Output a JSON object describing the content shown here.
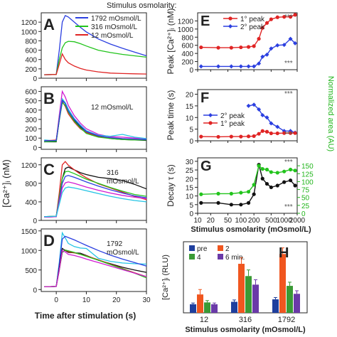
{
  "figure_title": "Stimulus osmolarity:",
  "left_ylabel": "[Ca²⁺]ᵢ (nM)",
  "left_xlabel": "Time after stimulation (s)",
  "colors": {
    "blue": "#2b3fe0",
    "green": "#22c41c",
    "red": "#e02424",
    "black": "#111111",
    "magenta": "#d21bd2",
    "cyan": "#24c4e4",
    "purple": "#6a3aa8",
    "orange": "#f0561f",
    "navy": "#1f3f9e",
    "darkgreen": "#3a9a35",
    "areaaxis": "#22b51c"
  },
  "chart_data": [
    {
      "panel": "A",
      "type": "line",
      "x": [
        -4,
        0,
        1,
        2,
        3,
        4,
        6,
        8,
        10,
        14,
        18,
        22,
        26,
        30
      ],
      "xlim": [
        -5,
        30
      ],
      "ylim": [
        0,
        1400
      ],
      "yticks": [
        0,
        200,
        400,
        600,
        800,
        1000,
        1200
      ],
      "series": [
        {
          "name": "1792 mOsmol/L",
          "color": "blue",
          "y": [
            75,
            80,
            600,
            1200,
            1340,
            1310,
            1200,
            1090,
            990,
            840,
            730,
            640,
            560,
            480
          ]
        },
        {
          "name": "316 mOsmol/L",
          "color": "green",
          "y": [
            75,
            80,
            400,
            650,
            760,
            790,
            780,
            740,
            690,
            600,
            550,
            510,
            480,
            450
          ]
        },
        {
          "name": "12 mOsmol/L",
          "color": "red",
          "y": [
            75,
            80,
            300,
            520,
            400,
            330,
            260,
            210,
            175,
            135,
            110,
            100,
            95,
            90
          ]
        }
      ]
    },
    {
      "panel": "B",
      "type": "line",
      "annotation": "12 mOsmol/L",
      "x": [
        -4,
        0,
        1,
        2,
        3,
        4,
        6,
        8,
        10,
        14,
        18,
        22,
        26,
        30
      ],
      "xlim": [
        -5,
        30
      ],
      "ylim": [
        -20,
        650
      ],
      "yticks": [
        0,
        100,
        200,
        300,
        400,
        500,
        600
      ],
      "series": [
        {
          "color": "magenta",
          "y": [
            60,
            70,
            350,
            600,
            540,
            450,
            340,
            260,
            200,
            140,
            115,
            110,
            100,
            95
          ]
        },
        {
          "color": "black",
          "y": [
            60,
            60,
            300,
            510,
            470,
            390,
            290,
            220,
            170,
            120,
            95,
            85,
            80,
            75
          ]
        },
        {
          "color": "cyan",
          "y": [
            80,
            70,
            320,
            520,
            480,
            410,
            310,
            240,
            180,
            130,
            120,
            140,
            110,
            95
          ]
        },
        {
          "color": "red",
          "y": [
            70,
            80,
            310,
            490,
            440,
            360,
            270,
            200,
            160,
            115,
            100,
            90,
            85,
            80
          ]
        },
        {
          "color": "green",
          "y": [
            60,
            65,
            290,
            480,
            450,
            380,
            280,
            210,
            150,
            110,
            95,
            85,
            80,
            80
          ]
        },
        {
          "color": "blue",
          "y": [
            70,
            75,
            300,
            500,
            470,
            390,
            300,
            230,
            170,
            125,
            105,
            95,
            90,
            85
          ]
        }
      ]
    },
    {
      "panel": "C",
      "type": "line",
      "annotation": "316 mOsmol/L",
      "x": [
        -4,
        0,
        1,
        2,
        3,
        4,
        6,
        8,
        10,
        14,
        18,
        22,
        26,
        30
      ],
      "xlim": [
        -5,
        30
      ],
      "ylim": [
        0,
        1350
      ],
      "yticks": [
        0,
        400,
        800,
        1200
      ],
      "series": [
        {
          "color": "black",
          "y": [
            80,
            90,
            500,
            900,
            1120,
            1150,
            1090,
            1030,
            990,
            930,
            900,
            860,
            780,
            680
          ]
        },
        {
          "color": "red",
          "y": [
            70,
            80,
            600,
            1200,
            1270,
            1190,
            1090,
            1000,
            920,
            790,
            700,
            610,
            520,
            450
          ]
        },
        {
          "color": "green",
          "y": [
            80,
            90,
            500,
            900,
            1050,
            1060,
            1010,
            950,
            890,
            800,
            710,
            630,
            560,
            520
          ]
        },
        {
          "color": "blue",
          "y": [
            70,
            80,
            450,
            800,
            950,
            970,
            930,
            880,
            830,
            740,
            660,
            590,
            530,
            490
          ]
        },
        {
          "color": "magenta",
          "y": [
            70,
            80,
            400,
            700,
            810,
            830,
            800,
            760,
            720,
            650,
            590,
            540,
            500,
            470
          ]
        },
        {
          "color": "cyan",
          "y": [
            80,
            90,
            350,
            600,
            700,
            720,
            700,
            670,
            640,
            580,
            520,
            470,
            430,
            400
          ]
        }
      ]
    },
    {
      "panel": "D",
      "type": "line",
      "annotation": "1792 mOsmol/L",
      "x": [
        -4,
        0,
        1,
        2,
        3,
        4,
        6,
        8,
        10,
        14,
        18,
        22,
        26,
        30
      ],
      "xlim": [
        -5,
        30
      ],
      "ylim": [
        -50,
        1550
      ],
      "yticks": [
        0,
        500,
        1000,
        1500
      ],
      "series": [
        {
          "color": "cyan",
          "y": [
            70,
            80,
            700,
            1450,
            1320,
            1180,
            1100,
            1060,
            1050,
            800,
            720,
            680,
            660,
            650
          ]
        },
        {
          "color": "blue",
          "y": [
            70,
            80,
            650,
            1290,
            1360,
            1330,
            1270,
            1200,
            1130,
            1000,
            880,
            780,
            690,
            600
          ]
        },
        {
          "color": "black",
          "y": [
            70,
            80,
            550,
            1050,
            1000,
            950,
            940,
            930,
            870,
            750,
            660,
            570,
            500,
            440
          ]
        },
        {
          "color": "red",
          "y": [
            70,
            80,
            500,
            950,
            1010,
            970,
            940,
            900,
            860,
            760,
            650,
            540,
            430,
            330
          ]
        },
        {
          "color": "green",
          "y": [
            70,
            80,
            500,
            950,
            1010,
            990,
            950,
            900,
            850,
            750,
            640,
            530,
            420,
            300
          ]
        },
        {
          "color": "magenta",
          "y": [
            70,
            80,
            500,
            1000,
            960,
            900,
            870,
            830,
            780,
            690,
            600,
            510,
            420,
            330
          ]
        }
      ]
    },
    {
      "panel": "E",
      "type": "line",
      "ylabel": "Peak [Ca²⁺]ᵢ (nM)",
      "x": [
        12,
        30,
        60,
        100,
        150,
        200,
        260,
        316,
        400,
        500,
        700,
        1000,
        1400,
        1792
      ],
      "xlim": [
        10,
        2000
      ],
      "xscale": "log",
      "ylim": [
        0,
        1400
      ],
      "yticks": [
        0,
        200,
        400,
        600,
        800,
        1000,
        1200
      ],
      "legend": [
        "1° peak",
        "2° peak"
      ],
      "stars": [
        "***",
        "***"
      ],
      "series": [
        {
          "name": "1° peak",
          "color": "red",
          "y": [
            550,
            540,
            540,
            550,
            560,
            580,
            760,
            1030,
            1150,
            1240,
            1290,
            1300,
            1300,
            1350
          ]
        },
        {
          "name": "2° peak",
          "color": "blue",
          "x": [
            12,
            30,
            60,
            100,
            150,
            200,
            260,
            316,
            400,
            500,
            700,
            1000,
            1400,
            1792
          ],
          "y": [
            80,
            80,
            80,
            80,
            80,
            80,
            150,
            320,
            370,
            520,
            600,
            610,
            760,
            650
          ]
        }
      ]
    },
    {
      "panel": "F",
      "type": "line",
      "ylabel": "Peak time (s)",
      "xlim": [
        10,
        2000
      ],
      "xscale": "log",
      "ylim": [
        0,
        22
      ],
      "yticks": [
        0,
        5,
        10,
        15,
        20
      ],
      "legend": [
        "2° peak",
        "1° peak"
      ],
      "stars": [
        "***",
        "***"
      ],
      "series": [
        {
          "name": "2° peak",
          "color": "blue",
          "x": [
            150,
            200,
            260,
            316,
            400,
            500,
            700,
            1000,
            1400,
            1792
          ],
          "y": [
            15,
            15.5,
            13.5,
            11,
            10,
            7.5,
            6,
            4.2,
            4.2,
            3.5
          ]
        },
        {
          "name": "1° peak",
          "color": "red",
          "x": [
            12,
            30,
            60,
            100,
            150,
            200,
            260,
            316,
            400,
            500,
            700,
            1000,
            1400,
            1792
          ],
          "y": [
            1.8,
            1.7,
            1.8,
            1.8,
            1.9,
            2,
            3,
            4.2,
            3.9,
            3.2,
            3.2,
            3.3,
            3.3,
            3.3
          ]
        }
      ]
    },
    {
      "panel": "G",
      "type": "line",
      "ylabel": "Decay τ (s)",
      "y2label": "Normalized area (AU)",
      "xlabel": "Stimulus osmolarity (mOsmol/L)",
      "xlim": [
        10,
        2000
      ],
      "xscale": "log",
      "xticks": [
        10,
        20,
        50,
        100,
        200,
        500,
        1000,
        2000
      ],
      "ylim": [
        0,
        32
      ],
      "yticks": [
        0,
        5,
        10,
        15,
        20,
        25,
        30
      ],
      "y2lim": [
        0,
        175
      ],
      "y2ticks": [
        0,
        25,
        50,
        75,
        100,
        125,
        150
      ],
      "stars": [
        "***",
        "***"
      ],
      "series": [
        {
          "name": "Decay τ",
          "color": "black",
          "x": [
            12,
            30,
            60,
            100,
            150,
            200,
            260,
            316,
            400,
            500,
            700,
            1000,
            1400,
            1792
          ],
          "y": [
            6,
            6,
            5,
            5,
            6,
            11,
            28,
            20,
            17,
            15,
            16,
            18,
            19,
            16
          ]
        },
        {
          "name": "Normalized area",
          "color": "green",
          "axis": "right",
          "x": [
            12,
            30,
            60,
            100,
            150,
            200,
            260,
            316,
            400,
            500,
            700,
            1000,
            1400,
            1792
          ],
          "y": [
            60,
            62,
            62,
            65,
            68,
            90,
            150,
            140,
            138,
            130,
            128,
            132,
            138,
            135
          ]
        }
      ]
    },
    {
      "panel": "H",
      "type": "bar",
      "ylabel": "[Ca²⁺]ᵢ (RLU)",
      "xlabel": "Stimulus osmolarity (mOsmol/L)",
      "categories": [
        "12",
        "316",
        "1792"
      ],
      "ylim": [
        0,
        580
      ],
      "legend": [
        "pre",
        "2",
        "4",
        "6 min."
      ],
      "series": [
        {
          "name": "pre",
          "color": "navy",
          "values": [
            70,
            90,
            110
          ]
        },
        {
          "name": "2",
          "color": "orange",
          "values": [
            150,
            400,
            480
          ]
        },
        {
          "name": "4",
          "color": "darkgreen",
          "values": [
            85,
            300,
            220
          ]
        },
        {
          "name": "6 min.",
          "color": "purple",
          "values": [
            70,
            230,
            155
          ]
        }
      ],
      "errors": [
        [
          10,
          15,
          15
        ],
        [
          40,
          50,
          50
        ],
        [
          15,
          50,
          30
        ],
        [
          10,
          40,
          25
        ]
      ]
    }
  ]
}
